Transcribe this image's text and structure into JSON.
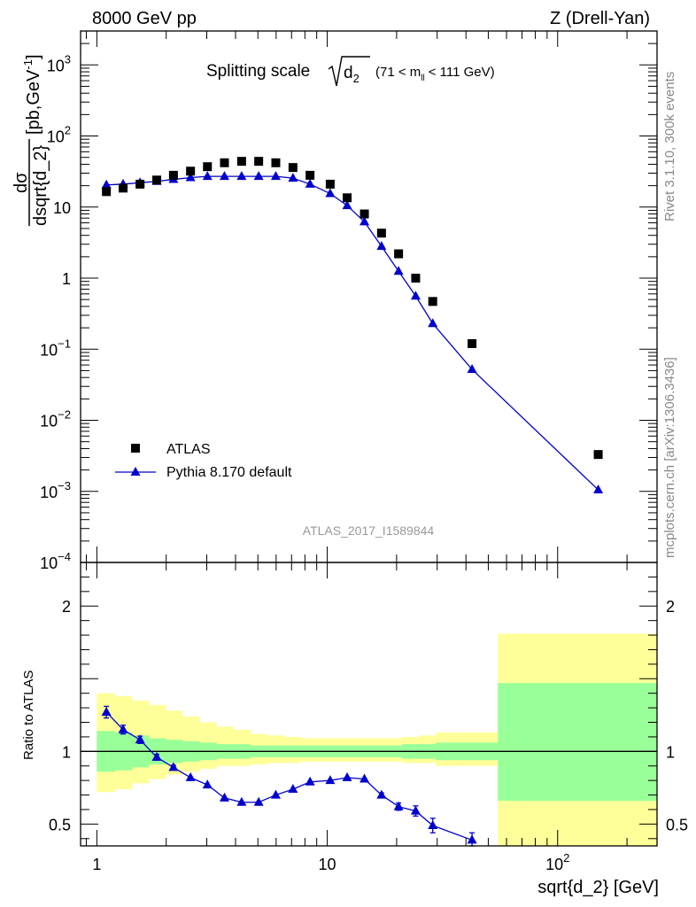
{
  "chart_data": {
    "type": "scatter",
    "header_left": "8000 GeV pp",
    "header_right": "Z (Drell-Yan)",
    "title": {
      "prefix": "Splitting scale",
      "symbol": "d",
      "subscript": "2",
      "range_open": "(71 < m",
      "range_sub": "ll",
      "range_close": "< 111 GeV)"
    },
    "ylabel": {
      "numerator": "dσ",
      "denominator": "dsqrt{d_2}",
      "units": "[pb,GeV",
      "units_sup": "-1",
      "units_end": "]"
    },
    "xlabel": "sqrt{d_2} [GeV]",
    "ratio_ylabel": "Ratio to ATLAS",
    "side_label_top": "Rivet 3.1.10,  300k events",
    "side_label_bottom": "mcplots.cern.ch [arXiv:1306.3436]",
    "watermark": "ATLAS_2017_I1589844",
    "xscale": "log",
    "xlim": [
      0.85,
      270
    ],
    "ylim": [
      0.0001,
      3000
    ],
    "ratio_ylim": [
      0.35,
      2.3
    ],
    "main_y_ticks": [
      {
        "base": "10",
        "exp": "3",
        "value": 1000
      },
      {
        "base": "10",
        "exp": "2",
        "value": 100
      },
      {
        "base": "10",
        "exp": "",
        "value": 10
      },
      {
        "base": "1",
        "exp": "",
        "value": 1
      },
      {
        "base": "10",
        "exp": "−1",
        "value": 0.1
      },
      {
        "base": "10",
        "exp": "−2",
        "value": 0.01
      },
      {
        "base": "10",
        "exp": "−3",
        "value": 0.001
      },
      {
        "base": "10",
        "exp": "−4",
        "value": 0.0001
      }
    ],
    "x_ticks": [
      {
        "base": "1",
        "exp": "",
        "value": 1
      },
      {
        "base": "10",
        "exp": "",
        "value": 10
      },
      {
        "base": "10",
        "exp": "2",
        "value": 100
      }
    ],
    "ratio_y_ticks": [
      {
        "label": "0.5",
        "value": 0.5
      },
      {
        "label": "1",
        "value": 1
      },
      {
        "label": "2",
        "value": 2
      }
    ],
    "legend": {
      "position": "bottom-left",
      "entries": [
        "ATLAS",
        "Pythia 8.170 default"
      ]
    },
    "series": [
      {
        "name": "ATLAS",
        "marker": "square",
        "color": "#000000",
        "x": [
          1.1,
          1.3,
          1.54,
          1.82,
          2.15,
          2.55,
          3.02,
          3.58,
          4.25,
          5.04,
          5.98,
          7.1,
          8.42,
          10.3,
          12.2,
          14.5,
          17.2,
          20.4,
          24.2,
          28.7,
          42.5,
          150
        ],
        "y": [
          16.5,
          18.5,
          21,
          24,
          28,
          32,
          37,
          42,
          44,
          44,
          42,
          36,
          28,
          21,
          13.5,
          8,
          4.3,
          2.2,
          1.0,
          0.47,
          0.12,
          0.0033
        ]
      },
      {
        "name": "Pythia 8.170 default",
        "marker": "triangle",
        "color": "#0000cc",
        "x": [
          1.1,
          1.3,
          1.54,
          1.82,
          2.15,
          2.55,
          3.02,
          3.58,
          4.25,
          5.04,
          5.98,
          7.1,
          8.42,
          10.3,
          12.2,
          14.5,
          17.2,
          20.4,
          24.2,
          28.7,
          42.5,
          150
        ],
        "y": [
          20.5,
          21,
          22,
          23,
          24.5,
          26,
          27,
          27,
          27,
          27,
          27,
          25.5,
          21,
          15.5,
          10.5,
          6.2,
          2.8,
          1.25,
          0.56,
          0.23,
          0.052,
          0.00105
        ]
      }
    ],
    "ratio": {
      "x": [
        1.1,
        1.3,
        1.54,
        1.82,
        2.15,
        2.55,
        3.02,
        3.58,
        4.25,
        5.04,
        5.98,
        7.1,
        8.42,
        10.3,
        12.2,
        14.5,
        17.2,
        20.4,
        24.2,
        28.7,
        42.5
      ],
      "y": [
        1.27,
        1.15,
        1.08,
        0.96,
        0.89,
        0.82,
        0.77,
        0.68,
        0.65,
        0.65,
        0.7,
        0.74,
        0.79,
        0.8,
        0.82,
        0.81,
        0.7,
        0.62,
        0.59,
        0.49,
        0.39
      ],
      "err": [
        0.04,
        0.03,
        0.025,
        0.02,
        0.015,
        0.01,
        0.01,
        0.01,
        0.01,
        0.01,
        0.01,
        0.01,
        0.01,
        0.01,
        0.01,
        0.01,
        0.015,
        0.025,
        0.035,
        0.05,
        0.05
      ]
    },
    "bands": {
      "edges": [
        1.0,
        1.2,
        1.42,
        1.68,
        1.99,
        2.35,
        2.78,
        3.3,
        3.9,
        4.62,
        5.47,
        6.48,
        7.67,
        9.08,
        10.75,
        12.72,
        15.06,
        17.83,
        21.1,
        24.98,
        29.57,
        35.0,
        55.0,
        270
      ],
      "green_lo": [
        0.86,
        0.87,
        0.89,
        0.91,
        0.92,
        0.93,
        0.94,
        0.95,
        0.95,
        0.96,
        0.96,
        0.96,
        0.96,
        0.96,
        0.96,
        0.96,
        0.96,
        0.96,
        0.95,
        0.95,
        0.94,
        0.94,
        0.66
      ],
      "green_hi": [
        1.14,
        1.13,
        1.11,
        1.09,
        1.08,
        1.07,
        1.06,
        1.05,
        1.05,
        1.04,
        1.04,
        1.04,
        1.04,
        1.04,
        1.04,
        1.04,
        1.04,
        1.04,
        1.05,
        1.05,
        1.06,
        1.06,
        1.47
      ],
      "yellow_lo": [
        0.72,
        0.74,
        0.78,
        0.81,
        0.84,
        0.86,
        0.88,
        0.9,
        0.9,
        0.91,
        0.92,
        0.92,
        0.93,
        0.93,
        0.93,
        0.93,
        0.93,
        0.93,
        0.92,
        0.92,
        0.9,
        0.9,
        0.35
      ],
      "yellow_hi": [
        1.4,
        1.38,
        1.35,
        1.32,
        1.28,
        1.24,
        1.2,
        1.17,
        1.15,
        1.12,
        1.11,
        1.1,
        1.09,
        1.09,
        1.09,
        1.09,
        1.09,
        1.09,
        1.1,
        1.11,
        1.13,
        1.13,
        1.81
      ],
      "green_color": "#99ff99",
      "yellow_color": "#ffff99"
    }
  }
}
